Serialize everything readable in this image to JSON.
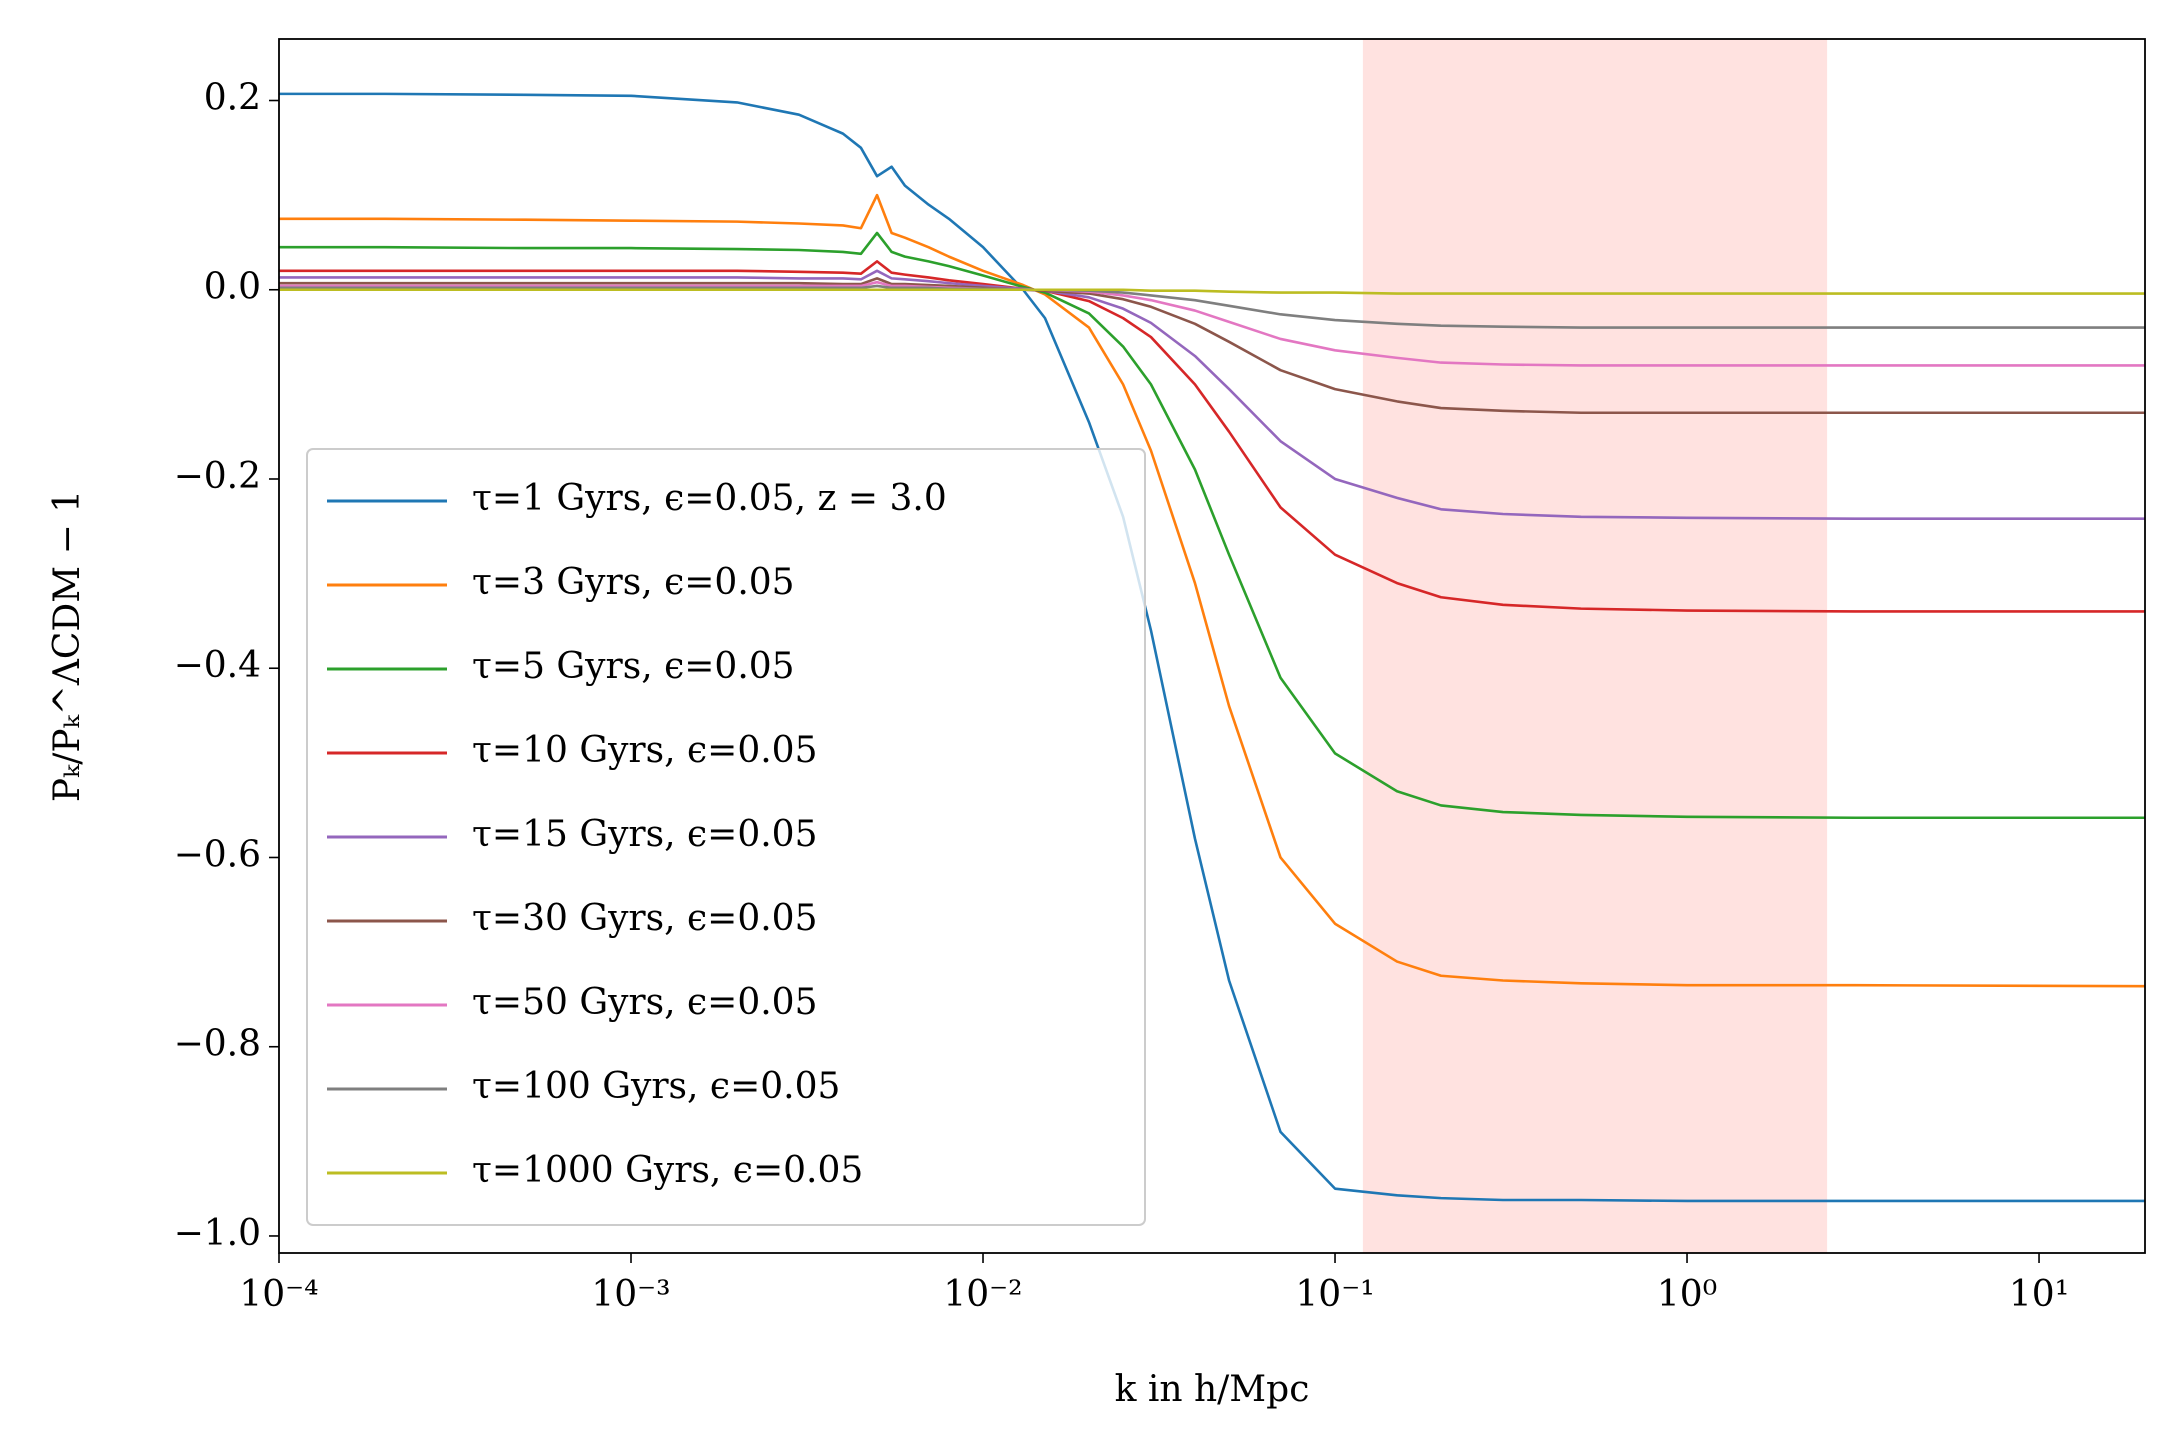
{
  "chart_data": {
    "type": "line",
    "xlabel": "k in h/Mpc",
    "ylabel": "Pₖ/Pₖ^ΛCDM − 1",
    "xscale": "log",
    "xlim": [
      0.0001,
      20
    ],
    "ylim": [
      -1.018,
      0.265
    ],
    "xticks": [
      {
        "value": 0.0001,
        "label": "10⁻⁴"
      },
      {
        "value": 0.001,
        "label": "10⁻³"
      },
      {
        "value": 0.01,
        "label": "10⁻²"
      },
      {
        "value": 0.1,
        "label": "10⁻¹"
      },
      {
        "value": 1,
        "label": "10⁰"
      },
      {
        "value": 10,
        "label": "10¹"
      }
    ],
    "yticks": [
      0.2,
      {
        "value": 0,
        "label": "0.0"
      },
      {
        "value": -0.2,
        "label": "−0.2"
      },
      {
        "value": -0.4,
        "label": "−0.4"
      },
      {
        "value": -0.6,
        "label": "−0.6"
      },
      {
        "value": -0.8,
        "label": "−0.8"
      },
      {
        "value": -1.0,
        "label": "−1.0"
      }
    ],
    "grid": false,
    "legend": "lower left",
    "shaded_span": {
      "x": [
        0.12,
        2.5
      ],
      "color": "#ffe2e0"
    },
    "x": [
      0.0001,
      0.0002,
      0.0005,
      0.001,
      0.002,
      0.003,
      0.004,
      0.0045,
      0.005,
      0.0055,
      0.006,
      0.007,
      0.008,
      0.01,
      0.013,
      0.015,
      0.02,
      0.025,
      0.03,
      0.04,
      0.05,
      0.07,
      0.1,
      0.15,
      0.2,
      0.3,
      0.5,
      1,
      3,
      20
    ],
    "series": [
      {
        "name": "τ=1 Gyrs, ϵ=0.05, z = 3.0",
        "color": "#1f77b4",
        "values": [
          0.207,
          0.207,
          0.206,
          0.205,
          0.198,
          0.185,
          0.165,
          0.15,
          0.12,
          0.13,
          0.11,
          0.09,
          0.075,
          0.045,
          0.0,
          -0.03,
          -0.14,
          -0.24,
          -0.36,
          -0.58,
          -0.73,
          -0.89,
          -0.95,
          -0.957,
          -0.96,
          -0.962,
          -0.962,
          -0.963,
          -0.963,
          -0.963
        ]
      },
      {
        "name": "τ=3 Gyrs, ϵ=0.05",
        "color": "#ff7f0e",
        "values": [
          0.075,
          0.075,
          0.074,
          0.073,
          0.072,
          0.07,
          0.068,
          0.065,
          0.1,
          0.06,
          0.055,
          0.045,
          0.035,
          0.02,
          0.005,
          -0.005,
          -0.04,
          -0.1,
          -0.17,
          -0.31,
          -0.44,
          -0.6,
          -0.67,
          -0.71,
          -0.725,
          -0.73,
          -0.733,
          -0.735,
          -0.735,
          -0.736
        ]
      },
      {
        "name": "τ=5 Gyrs, ϵ=0.05",
        "color": "#2ca02c",
        "values": [
          0.045,
          0.045,
          0.044,
          0.044,
          0.043,
          0.042,
          0.04,
          0.038,
          0.06,
          0.04,
          0.035,
          0.03,
          0.025,
          0.015,
          0.003,
          -0.003,
          -0.025,
          -0.06,
          -0.1,
          -0.19,
          -0.28,
          -0.41,
          -0.49,
          -0.53,
          -0.545,
          -0.552,
          -0.555,
          -0.557,
          -0.558,
          -0.558
        ]
      },
      {
        "name": "τ=10 Gyrs, ϵ=0.05",
        "color": "#d62728",
        "values": [
          0.02,
          0.02,
          0.02,
          0.02,
          0.02,
          0.019,
          0.018,
          0.017,
          0.03,
          0.018,
          0.016,
          0.013,
          0.01,
          0.006,
          0.001,
          -0.001,
          -0.012,
          -0.03,
          -0.05,
          -0.1,
          -0.15,
          -0.23,
          -0.28,
          -0.31,
          -0.325,
          -0.333,
          -0.337,
          -0.339,
          -0.34,
          -0.34
        ]
      },
      {
        "name": "τ=15 Gyrs, ϵ=0.05",
        "color": "#9467bd",
        "values": [
          0.013,
          0.013,
          0.013,
          0.013,
          0.013,
          0.012,
          0.012,
          0.011,
          0.02,
          0.012,
          0.011,
          0.009,
          0.007,
          0.004,
          0.001,
          -0.001,
          -0.008,
          -0.02,
          -0.035,
          -0.07,
          -0.105,
          -0.16,
          -0.2,
          -0.22,
          -0.232,
          -0.237,
          -0.24,
          -0.241,
          -0.242,
          -0.242
        ]
      },
      {
        "name": "τ=30 Gyrs, ϵ=0.05",
        "color": "#8c564b",
        "values": [
          0.007,
          0.007,
          0.007,
          0.007,
          0.007,
          0.007,
          0.006,
          0.006,
          0.012,
          0.006,
          0.006,
          0.005,
          0.004,
          0.002,
          0.0,
          -0.001,
          -0.004,
          -0.01,
          -0.018,
          -0.036,
          -0.055,
          -0.085,
          -0.105,
          -0.118,
          -0.125,
          -0.128,
          -0.13,
          -0.13,
          -0.13,
          -0.13
        ]
      },
      {
        "name": "τ=50 Gyrs, ϵ=0.05",
        "color": "#e377c2",
        "values": [
          0.004,
          0.004,
          0.004,
          0.004,
          0.004,
          0.004,
          0.004,
          0.004,
          0.008,
          0.004,
          0.004,
          0.003,
          0.002,
          0.001,
          0.0,
          0.0,
          -0.002,
          -0.006,
          -0.011,
          -0.022,
          -0.034,
          -0.052,
          -0.064,
          -0.072,
          -0.077,
          -0.079,
          -0.08,
          -0.08,
          -0.08,
          -0.08
        ]
      },
      {
        "name": "τ=100 Gyrs, ϵ=0.05",
        "color": "#7f7f7f",
        "values": [
          0.002,
          0.002,
          0.002,
          0.002,
          0.002,
          0.002,
          0.002,
          0.002,
          0.004,
          0.002,
          0.002,
          0.002,
          0.001,
          0.001,
          0.0,
          0.0,
          -0.001,
          -0.003,
          -0.006,
          -0.011,
          -0.017,
          -0.026,
          -0.032,
          -0.036,
          -0.038,
          -0.039,
          -0.04,
          -0.04,
          -0.04,
          -0.04
        ]
      },
      {
        "name": "τ=1000 Gyrs, ϵ=0.05",
        "color": "#bcbd22",
        "values": [
          0.0,
          0.0,
          0.0,
          0.0,
          0.0,
          0.0,
          0.0,
          0.0,
          0.0,
          0.0,
          0.0,
          0.0,
          0.0,
          0.0,
          0.0,
          0.0,
          0.0,
          0.0,
          -0.001,
          -0.001,
          -0.002,
          -0.003,
          -0.003,
          -0.004,
          -0.004,
          -0.004,
          -0.004,
          -0.004,
          -0.004,
          -0.004
        ]
      }
    ]
  }
}
